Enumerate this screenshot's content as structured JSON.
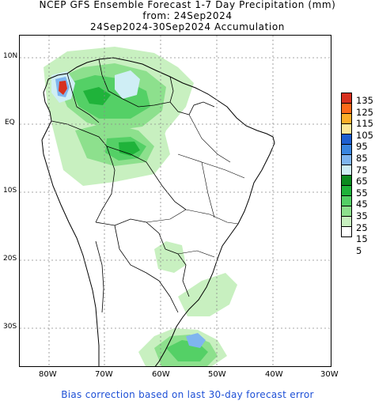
{
  "title": {
    "line1": "NCEP GFS Ensemble Forecast 1-7 Day Precipitation (mm)",
    "line2": "from: 24Sep2024",
    "line3": "24Sep2024-30Sep2024 Accumulation"
  },
  "axes": {
    "lat_labels": [
      "10N",
      "EQ",
      "10S",
      "20S",
      "30S"
    ],
    "lon_labels": [
      "80W",
      "70W",
      "60W",
      "50W",
      "40W",
      "30W"
    ]
  },
  "legend": {
    "levels": [
      "135",
      "125",
      "115",
      "105",
      "95",
      "85",
      "75",
      "65",
      "55",
      "45",
      "35",
      "25",
      "15",
      "5"
    ],
    "colors": [
      "#d7301f",
      "#fd6a1a",
      "#fdae2a",
      "#fde89a",
      "#1e5fd0",
      "#3a86e0",
      "#7fb5ef",
      "#cfeef5",
      "#0b8a1f",
      "#1fb33a",
      "#54d066",
      "#8de08d",
      "#c8f0c0",
      "#ffffff"
    ]
  },
  "footer": "Bias correction based on last 30-day forecast error"
}
